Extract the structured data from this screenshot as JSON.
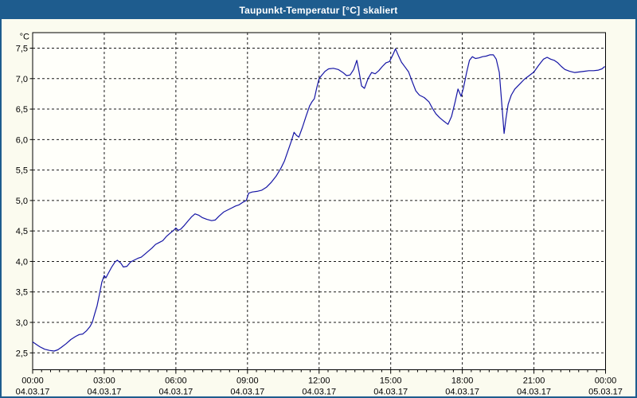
{
  "window": {
    "title": "Taupunkt-Temperatur [°C] skaliert"
  },
  "colors": {
    "titlebar_bg": "#1E5C8E",
    "frame_border": "#1E5C8E",
    "background": "#FBFBEF",
    "plot_background": "#FFFFFA",
    "line": "#1515A5",
    "grid": "#1a1a1a",
    "text": "#000000"
  },
  "chart_data": {
    "type": "line",
    "title": "Taupunkt-Temperatur [°C] skaliert",
    "unit_label": "°C",
    "grid": "dashed",
    "legend": "none",
    "ylim": [
      2.5,
      7.5
    ],
    "x_range_hours": [
      0,
      24
    ],
    "x_minor_tick_hours": 0.375,
    "y_ticks": [
      {
        "v": 7.5,
        "label": "7,5"
      },
      {
        "v": 7.0,
        "label": "7,0"
      },
      {
        "v": 6.5,
        "label": "6,5"
      },
      {
        "v": 6.0,
        "label": "6,0"
      },
      {
        "v": 5.5,
        "label": "5,5"
      },
      {
        "v": 5.0,
        "label": "5,0"
      },
      {
        "v": 4.5,
        "label": "4,5"
      },
      {
        "v": 4.0,
        "label": "4,0"
      },
      {
        "v": 3.5,
        "label": "3,5"
      },
      {
        "v": 3.0,
        "label": "3,0"
      },
      {
        "v": 2.5,
        "label": "2,5"
      }
    ],
    "x_ticks": [
      {
        "t": 0,
        "time": "00:00",
        "date": "04.03.17"
      },
      {
        "t": 3,
        "time": "03:00",
        "date": "04.03.17"
      },
      {
        "t": 6,
        "time": "06:00",
        "date": "04.03.17"
      },
      {
        "t": 9,
        "time": "09:00",
        "date": "04.03.17"
      },
      {
        "t": 12,
        "time": "12:00",
        "date": "04.03.17"
      },
      {
        "t": 15,
        "time": "15:00",
        "date": "04.03.17"
      },
      {
        "t": 18,
        "time": "18:00",
        "date": "04.03.17"
      },
      {
        "t": 21,
        "time": "21:00",
        "date": "04.03.17"
      },
      {
        "t": 24,
        "time": "00:00",
        "date": "05.03.17"
      }
    ],
    "series": [
      {
        "points": [
          [
            0.0,
            2.68
          ],
          [
            0.15,
            2.64
          ],
          [
            0.3,
            2.6
          ],
          [
            0.5,
            2.56
          ],
          [
            0.7,
            2.54
          ],
          [
            0.9,
            2.53
          ],
          [
            1.05,
            2.55
          ],
          [
            1.2,
            2.59
          ],
          [
            1.4,
            2.65
          ],
          [
            1.6,
            2.72
          ],
          [
            1.8,
            2.77
          ],
          [
            1.95,
            2.8
          ],
          [
            2.1,
            2.81
          ],
          [
            2.25,
            2.86
          ],
          [
            2.4,
            2.93
          ],
          [
            2.5,
            3.0
          ],
          [
            2.6,
            3.14
          ],
          [
            2.7,
            3.27
          ],
          [
            2.8,
            3.46
          ],
          [
            2.9,
            3.66
          ],
          [
            3.0,
            3.77
          ],
          [
            3.07,
            3.73
          ],
          [
            3.15,
            3.79
          ],
          [
            3.3,
            3.9
          ],
          [
            3.45,
            3.99
          ],
          [
            3.55,
            4.02
          ],
          [
            3.7,
            3.97
          ],
          [
            3.8,
            3.91
          ],
          [
            3.95,
            3.92
          ],
          [
            4.1,
            3.99
          ],
          [
            4.25,
            4.02
          ],
          [
            4.4,
            4.05
          ],
          [
            4.55,
            4.07
          ],
          [
            4.7,
            4.12
          ],
          [
            4.85,
            4.17
          ],
          [
            5.0,
            4.22
          ],
          [
            5.15,
            4.28
          ],
          [
            5.3,
            4.31
          ],
          [
            5.45,
            4.34
          ],
          [
            5.6,
            4.41
          ],
          [
            5.75,
            4.46
          ],
          [
            5.9,
            4.51
          ],
          [
            6.0,
            4.55
          ],
          [
            6.1,
            4.51
          ],
          [
            6.2,
            4.53
          ],
          [
            6.35,
            4.59
          ],
          [
            6.5,
            4.66
          ],
          [
            6.65,
            4.73
          ],
          [
            6.8,
            4.78
          ],
          [
            6.95,
            4.76
          ],
          [
            7.1,
            4.72
          ],
          [
            7.3,
            4.69
          ],
          [
            7.5,
            4.67
          ],
          [
            7.65,
            4.68
          ],
          [
            7.8,
            4.74
          ],
          [
            8.0,
            4.81
          ],
          [
            8.2,
            4.85
          ],
          [
            8.35,
            4.88
          ],
          [
            8.5,
            4.91
          ],
          [
            8.65,
            4.93
          ],
          [
            8.8,
            4.97
          ],
          [
            8.95,
            5.0
          ],
          [
            9.05,
            5.12
          ],
          [
            9.2,
            5.14
          ],
          [
            9.4,
            5.15
          ],
          [
            9.6,
            5.17
          ],
          [
            9.8,
            5.22
          ],
          [
            10.0,
            5.3
          ],
          [
            10.2,
            5.4
          ],
          [
            10.4,
            5.53
          ],
          [
            10.55,
            5.65
          ],
          [
            10.7,
            5.82
          ],
          [
            10.85,
            5.99
          ],
          [
            10.95,
            6.12
          ],
          [
            11.05,
            6.07
          ],
          [
            11.15,
            6.04
          ],
          [
            11.3,
            6.2
          ],
          [
            11.45,
            6.38
          ],
          [
            11.6,
            6.55
          ],
          [
            11.7,
            6.62
          ],
          [
            11.8,
            6.67
          ],
          [
            11.9,
            6.85
          ],
          [
            12.0,
            7.0
          ],
          [
            12.1,
            7.05
          ],
          [
            12.25,
            7.12
          ],
          [
            12.4,
            7.16
          ],
          [
            12.6,
            7.17
          ],
          [
            12.8,
            7.15
          ],
          [
            13.0,
            7.1
          ],
          [
            13.15,
            7.05
          ],
          [
            13.3,
            7.06
          ],
          [
            13.45,
            7.15
          ],
          [
            13.58,
            7.3
          ],
          [
            13.68,
            7.1
          ],
          [
            13.78,
            6.88
          ],
          [
            13.9,
            6.84
          ],
          [
            14.05,
            7.0
          ],
          [
            14.2,
            7.1
          ],
          [
            14.35,
            7.08
          ],
          [
            14.5,
            7.13
          ],
          [
            14.65,
            7.2
          ],
          [
            14.8,
            7.26
          ],
          [
            14.95,
            7.28
          ],
          [
            15.1,
            7.4
          ],
          [
            15.2,
            7.49
          ],
          [
            15.32,
            7.38
          ],
          [
            15.45,
            7.27
          ],
          [
            15.6,
            7.19
          ],
          [
            15.75,
            7.11
          ],
          [
            15.9,
            6.95
          ],
          [
            16.05,
            6.8
          ],
          [
            16.2,
            6.73
          ],
          [
            16.4,
            6.69
          ],
          [
            16.6,
            6.62
          ],
          [
            16.75,
            6.51
          ],
          [
            16.9,
            6.42
          ],
          [
            17.05,
            6.36
          ],
          [
            17.2,
            6.31
          ],
          [
            17.4,
            6.25
          ],
          [
            17.55,
            6.38
          ],
          [
            17.7,
            6.62
          ],
          [
            17.82,
            6.83
          ],
          [
            17.95,
            6.71
          ],
          [
            18.05,
            6.85
          ],
          [
            18.18,
            7.1
          ],
          [
            18.3,
            7.3
          ],
          [
            18.42,
            7.36
          ],
          [
            18.55,
            7.33
          ],
          [
            18.7,
            7.34
          ],
          [
            18.85,
            7.36
          ],
          [
            19.0,
            7.37
          ],
          [
            19.15,
            7.39
          ],
          [
            19.3,
            7.39
          ],
          [
            19.42,
            7.32
          ],
          [
            19.55,
            7.1
          ],
          [
            19.65,
            6.6
          ],
          [
            19.75,
            6.1
          ],
          [
            19.83,
            6.35
          ],
          [
            19.92,
            6.58
          ],
          [
            20.05,
            6.73
          ],
          [
            20.2,
            6.83
          ],
          [
            20.4,
            6.91
          ],
          [
            20.6,
            6.99
          ],
          [
            20.8,
            7.05
          ],
          [
            21.0,
            7.11
          ],
          [
            21.2,
            7.22
          ],
          [
            21.4,
            7.32
          ],
          [
            21.55,
            7.35
          ],
          [
            21.7,
            7.32
          ],
          [
            21.85,
            7.3
          ],
          [
            22.0,
            7.26
          ],
          [
            22.15,
            7.2
          ],
          [
            22.3,
            7.15
          ],
          [
            22.5,
            7.12
          ],
          [
            22.7,
            7.1
          ],
          [
            22.9,
            7.11
          ],
          [
            23.1,
            7.12
          ],
          [
            23.3,
            7.13
          ],
          [
            23.5,
            7.13
          ],
          [
            23.7,
            7.14
          ],
          [
            23.85,
            7.16
          ],
          [
            23.97,
            7.2
          ]
        ]
      }
    ]
  }
}
